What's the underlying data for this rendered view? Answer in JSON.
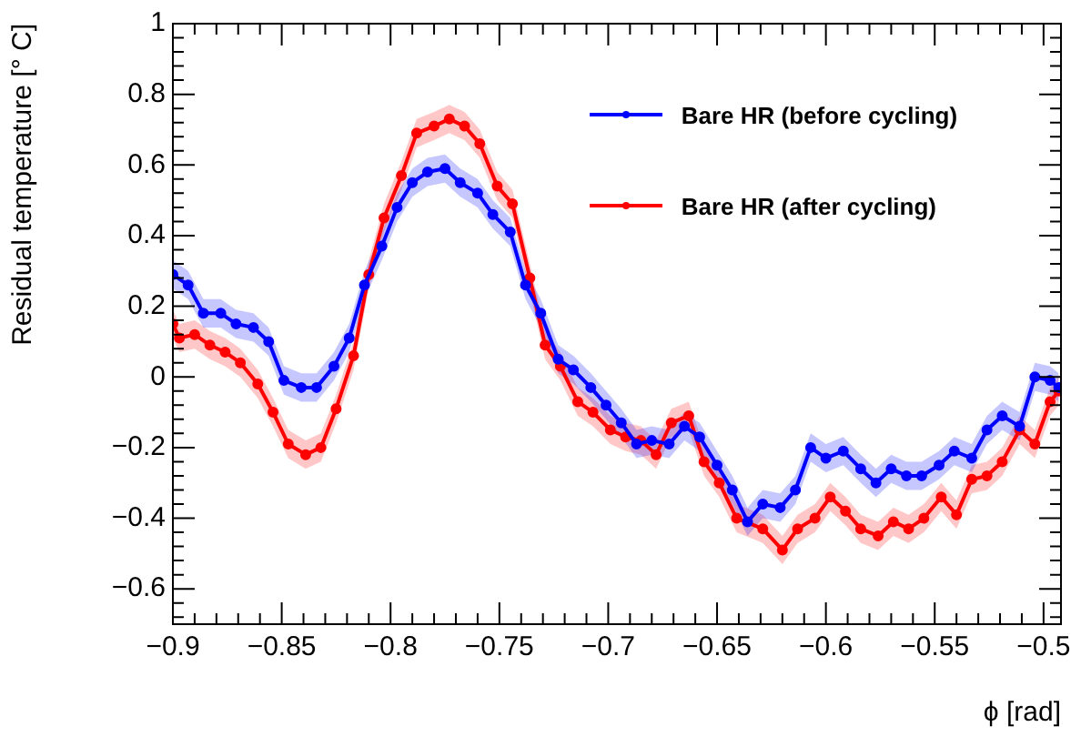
{
  "chart_data": {
    "type": "line",
    "xlabel": "ϕ [rad]",
    "ylabel": "Residual temperature [° C]",
    "xlim": [
      -0.9,
      -0.492
    ],
    "ylim": [
      -0.7,
      1
    ],
    "xticks": [
      {
        "value": -0.9,
        "label": "−0.9"
      },
      {
        "value": -0.89,
        "label": null
      },
      {
        "value": -0.88,
        "label": null
      },
      {
        "value": -0.87,
        "label": null
      },
      {
        "value": -0.86,
        "label": null
      },
      {
        "value": -0.85,
        "label": "−0.85"
      },
      {
        "value": -0.84,
        "label": null
      },
      {
        "value": -0.83,
        "label": null
      },
      {
        "value": -0.82,
        "label": null
      },
      {
        "value": -0.81,
        "label": null
      },
      {
        "value": -0.8,
        "label": "−0.8"
      },
      {
        "value": -0.79,
        "label": null
      },
      {
        "value": -0.78,
        "label": null
      },
      {
        "value": -0.77,
        "label": null
      },
      {
        "value": -0.76,
        "label": null
      },
      {
        "value": -0.75,
        "label": "−0.75"
      },
      {
        "value": -0.74,
        "label": null
      },
      {
        "value": -0.73,
        "label": null
      },
      {
        "value": -0.72,
        "label": null
      },
      {
        "value": -0.71,
        "label": null
      },
      {
        "value": -0.7,
        "label": "−0.7"
      },
      {
        "value": -0.69,
        "label": null
      },
      {
        "value": -0.68,
        "label": null
      },
      {
        "value": -0.67,
        "label": null
      },
      {
        "value": -0.66,
        "label": null
      },
      {
        "value": -0.65,
        "label": "−0.65"
      },
      {
        "value": -0.64,
        "label": null
      },
      {
        "value": -0.63,
        "label": null
      },
      {
        "value": -0.62,
        "label": null
      },
      {
        "value": -0.61,
        "label": null
      },
      {
        "value": -0.6,
        "label": "−0.6"
      },
      {
        "value": -0.59,
        "label": null
      },
      {
        "value": -0.58,
        "label": null
      },
      {
        "value": -0.57,
        "label": null
      },
      {
        "value": -0.56,
        "label": null
      },
      {
        "value": -0.55,
        "label": "−0.55"
      },
      {
        "value": -0.54,
        "label": null
      },
      {
        "value": -0.53,
        "label": null
      },
      {
        "value": -0.52,
        "label": null
      },
      {
        "value": -0.51,
        "label": null
      },
      {
        "value": -0.5,
        "label": "−0.5"
      }
    ],
    "yticks": [
      {
        "value": -0.68,
        "label": null
      },
      {
        "value": -0.64,
        "label": null
      },
      {
        "value": -0.6,
        "label": "−0.6"
      },
      {
        "value": -0.56,
        "label": null
      },
      {
        "value": -0.52,
        "label": null
      },
      {
        "value": -0.48,
        "label": null
      },
      {
        "value": -0.44,
        "label": null
      },
      {
        "value": -0.4,
        "label": "−0.4"
      },
      {
        "value": -0.36,
        "label": null
      },
      {
        "value": -0.32,
        "label": null
      },
      {
        "value": -0.28,
        "label": null
      },
      {
        "value": -0.24,
        "label": null
      },
      {
        "value": -0.2,
        "label": "−0.2"
      },
      {
        "value": -0.16,
        "label": null
      },
      {
        "value": -0.12,
        "label": null
      },
      {
        "value": -0.08,
        "label": null
      },
      {
        "value": -0.04,
        "label": null
      },
      0,
      {
        "value": 0.04,
        "label": null
      },
      {
        "value": 0.08,
        "label": null
      },
      {
        "value": 0.12,
        "label": null
      },
      {
        "value": 0.16,
        "label": null
      },
      0.2,
      {
        "value": 0.24,
        "label": null
      },
      {
        "value": 0.28,
        "label": null
      },
      {
        "value": 0.32,
        "label": null
      },
      {
        "value": 0.36,
        "label": null
      },
      0.4,
      {
        "value": 0.44,
        "label": null
      },
      {
        "value": 0.48,
        "label": null
      },
      {
        "value": 0.52,
        "label": null
      },
      {
        "value": 0.56,
        "label": null
      },
      0.6,
      {
        "value": 0.64,
        "label": null
      },
      {
        "value": 0.68,
        "label": null
      },
      {
        "value": 0.72,
        "label": null
      },
      {
        "value": 0.76,
        "label": null
      },
      0.8,
      {
        "value": 0.84,
        "label": null
      },
      {
        "value": 0.88,
        "label": null
      },
      {
        "value": 0.92,
        "label": null
      },
      {
        "value": 0.96,
        "label": null
      },
      1
    ],
    "legend": "top right",
    "marker": "circle",
    "line_style": "solid",
    "series": [
      {
        "name": "Bare HR (before cycling)",
        "color": "#0000ff",
        "x": [
          -0.9,
          -0.893,
          -0.886,
          -0.878,
          -0.871,
          -0.863,
          -0.856,
          -0.849,
          -0.841,
          -0.834,
          -0.826,
          -0.819,
          -0.812,
          -0.804,
          -0.797,
          -0.79,
          -0.783,
          -0.775,
          -0.768,
          -0.76,
          -0.753,
          -0.745,
          -0.738,
          -0.731,
          -0.723,
          -0.716,
          -0.708,
          -0.701,
          -0.694,
          -0.687,
          -0.68,
          -0.672,
          -0.665,
          -0.658,
          -0.65,
          -0.643,
          -0.636,
          -0.629,
          -0.621,
          -0.614,
          -0.607,
          -0.6,
          -0.592,
          -0.584,
          -0.577,
          -0.57,
          -0.563,
          -0.556,
          -0.548,
          -0.541,
          -0.533,
          -0.526,
          -0.519,
          -0.511,
          -0.504,
          -0.497,
          -0.493
        ],
        "values": [
          0.29,
          0.26,
          0.18,
          0.18,
          0.15,
          0.14,
          0.1,
          -0.01,
          -0.03,
          -0.03,
          0.03,
          0.11,
          0.26,
          0.37,
          0.48,
          0.55,
          0.58,
          0.59,
          0.55,
          0.52,
          0.46,
          0.41,
          0.26,
          0.18,
          0.05,
          0.02,
          -0.03,
          -0.08,
          -0.13,
          -0.19,
          -0.18,
          -0.19,
          -0.14,
          -0.17,
          -0.25,
          -0.32,
          -0.41,
          -0.36,
          -0.37,
          -0.32,
          -0.2,
          -0.23,
          -0.21,
          -0.26,
          -0.3,
          -0.26,
          -0.28,
          -0.28,
          -0.25,
          -0.21,
          -0.23,
          -0.15,
          -0.11,
          -0.14,
          0.0,
          -0.01,
          -0.03
        ],
        "lower": [
          0.25,
          0.22,
          0.14,
          0.14,
          0.11,
          0.1,
          0.06,
          -0.05,
          -0.07,
          -0.07,
          -0.01,
          0.07,
          0.22,
          0.33,
          0.44,
          0.51,
          0.54,
          0.55,
          0.51,
          0.48,
          0.42,
          0.37,
          0.22,
          0.14,
          0.01,
          -0.02,
          -0.07,
          -0.12,
          -0.17,
          -0.23,
          -0.22,
          -0.23,
          -0.18,
          -0.21,
          -0.29,
          -0.36,
          -0.45,
          -0.4,
          -0.41,
          -0.36,
          -0.24,
          -0.27,
          -0.25,
          -0.3,
          -0.34,
          -0.3,
          -0.32,
          -0.32,
          -0.29,
          -0.25,
          -0.27,
          -0.19,
          -0.15,
          -0.18,
          -0.04,
          -0.05,
          -0.07
        ],
        "upper": [
          0.33,
          0.3,
          0.22,
          0.22,
          0.19,
          0.18,
          0.14,
          0.03,
          0.01,
          0.01,
          0.07,
          0.15,
          0.3,
          0.41,
          0.52,
          0.59,
          0.62,
          0.63,
          0.59,
          0.56,
          0.5,
          0.45,
          0.3,
          0.22,
          0.09,
          0.06,
          0.01,
          -0.04,
          -0.09,
          -0.15,
          -0.14,
          -0.15,
          -0.1,
          -0.13,
          -0.21,
          -0.28,
          -0.37,
          -0.32,
          -0.33,
          -0.28,
          -0.16,
          -0.19,
          -0.17,
          -0.22,
          -0.26,
          -0.22,
          -0.24,
          -0.24,
          -0.21,
          -0.17,
          -0.19,
          -0.11,
          -0.07,
          -0.1,
          0.04,
          0.03,
          0.01
        ]
      },
      {
        "name": "Bare HR (after cycling)",
        "color": "#ff0000",
        "x": [
          -0.9,
          -0.897,
          -0.89,
          -0.883,
          -0.876,
          -0.869,
          -0.861,
          -0.854,
          -0.847,
          -0.839,
          -0.832,
          -0.825,
          -0.817,
          -0.81,
          -0.803,
          -0.795,
          -0.788,
          -0.78,
          -0.773,
          -0.766,
          -0.759,
          -0.751,
          -0.744,
          -0.736,
          -0.729,
          -0.722,
          -0.714,
          -0.707,
          -0.699,
          -0.692,
          -0.685,
          -0.678,
          -0.671,
          -0.663,
          -0.656,
          -0.649,
          -0.641,
          -0.629,
          -0.62,
          -0.613,
          -0.605,
          -0.598,
          -0.591,
          -0.584,
          -0.576,
          -0.569,
          -0.562,
          -0.555,
          -0.547,
          -0.54,
          -0.533,
          -0.526,
          -0.519,
          -0.511,
          -0.504,
          -0.497,
          -0.493
        ],
        "values": [
          0.15,
          0.11,
          0.12,
          0.09,
          0.07,
          0.04,
          -0.02,
          -0.1,
          -0.19,
          -0.22,
          -0.2,
          -0.09,
          0.06,
          0.29,
          0.45,
          0.57,
          0.69,
          0.71,
          0.73,
          0.71,
          0.66,
          0.54,
          0.49,
          0.28,
          0.09,
          0.03,
          -0.07,
          -0.1,
          -0.15,
          -0.17,
          -0.18,
          -0.22,
          -0.13,
          -0.11,
          -0.24,
          -0.3,
          -0.4,
          -0.43,
          -0.49,
          -0.43,
          -0.4,
          -0.34,
          -0.38,
          -0.43,
          -0.45,
          -0.41,
          -0.43,
          -0.4,
          -0.34,
          -0.39,
          -0.29,
          -0.28,
          -0.24,
          -0.15,
          -0.19,
          -0.07,
          -0.04
        ],
        "lower": [
          0.11,
          0.07,
          0.08,
          0.05,
          0.03,
          0.0,
          -0.06,
          -0.14,
          -0.23,
          -0.26,
          -0.24,
          -0.13,
          0.02,
          0.25,
          0.41,
          0.53,
          0.65,
          0.67,
          0.69,
          0.67,
          0.62,
          0.5,
          0.45,
          0.24,
          0.05,
          -0.01,
          -0.11,
          -0.14,
          -0.19,
          -0.21,
          -0.22,
          -0.26,
          -0.17,
          -0.15,
          -0.28,
          -0.34,
          -0.44,
          -0.47,
          -0.53,
          -0.47,
          -0.44,
          -0.38,
          -0.42,
          -0.47,
          -0.49,
          -0.45,
          -0.47,
          -0.44,
          -0.38,
          -0.43,
          -0.33,
          -0.32,
          -0.28,
          -0.19,
          -0.23,
          -0.11,
          -0.08
        ],
        "upper": [
          0.19,
          0.15,
          0.16,
          0.13,
          0.11,
          0.08,
          0.02,
          -0.06,
          -0.15,
          -0.18,
          -0.16,
          -0.05,
          0.1,
          0.33,
          0.49,
          0.61,
          0.73,
          0.75,
          0.77,
          0.75,
          0.7,
          0.58,
          0.53,
          0.32,
          0.13,
          0.07,
          -0.03,
          -0.06,
          -0.11,
          -0.13,
          -0.14,
          -0.18,
          -0.09,
          -0.07,
          -0.2,
          -0.26,
          -0.36,
          -0.39,
          -0.45,
          -0.39,
          -0.36,
          -0.3,
          -0.34,
          -0.39,
          -0.41,
          -0.37,
          -0.39,
          -0.36,
          -0.3,
          -0.35,
          -0.25,
          -0.24,
          -0.2,
          -0.11,
          -0.15,
          -0.03,
          0.0
        ]
      }
    ]
  }
}
